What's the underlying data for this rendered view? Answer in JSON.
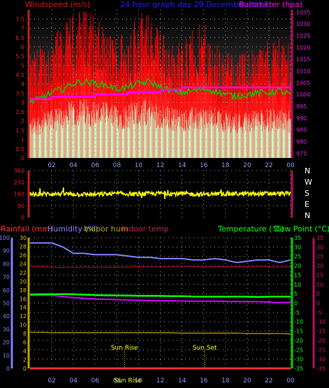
{
  "header": {
    "wind_title": "Windspeed (m/s)",
    "graph_title": "24 hour graph day  29 December 2013",
    "baro_title": "Barometer (hpa)"
  },
  "colors": {
    "wind": "#ff0000",
    "gust_mean": "#00cc00",
    "wind_light": "#ccffcc",
    "baro": "#ff00ff",
    "direction": "#ffff00",
    "rain": "#ff3030",
    "humidity": "#8080ff",
    "indoor_hum": "#b8a400",
    "indoor_temp": "#a00030",
    "temperature": "#00ff00",
    "dewpoint": "#cc00ff",
    "grid": "#9a9a9a",
    "axis_left": "#c02020",
    "axis_right": "#b01060",
    "axis_right2": "#00cc00"
  },
  "time_ticks": [
    "02",
    "04",
    "06",
    "08",
    "10",
    "12",
    "14",
    "16",
    "18",
    "20",
    "22",
    "00"
  ],
  "chart_data": [
    {
      "type": "area",
      "title": "24 hour graph day  29 December 2013",
      "xlabel": "",
      "ylabel": "Windspeed (m/s)",
      "y2label": "Barometer (hpa)",
      "ylim": [
        0,
        8
      ],
      "y_ticks": [
        "0",
        "0.5",
        "1",
        "1.5",
        "2",
        "2.5",
        "3",
        "3.5",
        "4",
        "4.5",
        "5",
        "5.5",
        "6",
        "6.5",
        "7",
        "7.5"
      ],
      "y2lim": [
        973,
        1036
      ],
      "y2_ticks": [
        "975",
        "980",
        "985",
        "990",
        "995",
        "1000",
        "1005",
        "1010",
        "1015",
        "1020",
        "1025",
        "1030",
        "1035"
      ],
      "x": [
        0,
        1,
        2,
        3,
        4,
        5,
        6,
        7,
        8,
        9,
        10,
        11,
        12,
        13,
        14,
        15,
        16,
        17,
        18,
        19,
        20,
        21,
        22,
        23,
        24
      ],
      "series": [
        {
          "name": "Windspeed",
          "values": [
            3.0,
            3.3,
            3.6,
            4.0,
            4.6,
            4.9,
            4.7,
            4.4,
            4.1,
            4.3,
            4.8,
            5.2,
            4.6,
            4.0,
            3.9,
            4.3,
            4.4,
            3.8,
            3.6,
            3.4,
            3.6,
            3.8,
            3.9,
            4.2,
            3.7
          ]
        },
        {
          "name": "Gust",
          "values": [
            4.8,
            5.5,
            5.8,
            6.2,
            6.8,
            7.6,
            6.6,
            6.0,
            5.9,
            6.2,
            7.0,
            6.8,
            6.2,
            5.4,
            5.6,
            6.1,
            6.4,
            5.6,
            5.0,
            4.8,
            5.2,
            5.4,
            5.6,
            6.0,
            5.2
          ]
        },
        {
          "name": "Mean",
          "values": [
            2.3,
            2.5,
            2.8,
            3.0,
            3.3,
            3.4,
            3.3,
            3.2,
            3.0,
            3.1,
            3.3,
            3.4,
            3.1,
            2.9,
            2.8,
            2.9,
            3.0,
            2.9,
            2.7,
            2.6,
            2.7,
            2.8,
            2.8,
            2.9,
            2.7
          ]
        },
        {
          "name": "Barometer",
          "axis": "y2",
          "values": [
            998,
            998,
            999,
            999,
            999,
            999,
            1000,
            1000,
            1000,
            1001,
            1001,
            1001,
            1002,
            1002,
            1003,
            1003,
            1003,
            1003,
            1003,
            1003,
            1003,
            1003,
            1003,
            1003,
            1002
          ]
        }
      ]
    },
    {
      "type": "line",
      "y_ticks": [
        "0",
        "90",
        "180",
        "270",
        "360"
      ],
      "ylim": [
        0,
        360
      ],
      "y_right_labels": [
        "N",
        "W",
        "S",
        "E",
        "N"
      ],
      "series": [
        {
          "name": "Wind direction",
          "x": [
            0,
            2,
            4,
            6,
            8,
            10,
            12,
            14,
            16,
            18,
            20,
            22,
            24
          ],
          "values": [
            178,
            182,
            180,
            176,
            183,
            179,
            185,
            181,
            178,
            182,
            180,
            184,
            183
          ]
        }
      ]
    },
    {
      "type": "line",
      "legend": [
        "Rainfall (mm)",
        "Humidity (%)",
        "Indoor hum",
        "Indoor temp",
        "Temperature (°C)",
        "Dew Point (°C)"
      ],
      "rain_ticks": [
        "0",
        "10",
        "20",
        "30",
        "40",
        "50",
        "60",
        "70",
        "80",
        "90",
        "100"
      ],
      "hum_ticks": [
        "0",
        "2",
        "4",
        "6",
        "8",
        "10",
        "12",
        "14",
        "16",
        "18",
        "20",
        "22",
        "24",
        "26",
        "28",
        "30"
      ],
      "temp_ticks": [
        "-35",
        "-30",
        "-25",
        "-20",
        "-15",
        "-10",
        "-5",
        "0",
        "5",
        "10",
        "15",
        "20",
        "25",
        "30",
        "35"
      ],
      "ylim": [
        -35,
        35
      ],
      "x": [
        0,
        1,
        2,
        3,
        4,
        5,
        6,
        7,
        8,
        9,
        10,
        11,
        12,
        13,
        14,
        15,
        16,
        17,
        18,
        19,
        20,
        21,
        22,
        23,
        24
      ],
      "series": [
        {
          "name": "Humidity (%)",
          "axis": "rain",
          "values": [
            96,
            96,
            96,
            93,
            88,
            88,
            87,
            87,
            87,
            86,
            85,
            85,
            84,
            84,
            84,
            83,
            83,
            84,
            83,
            81,
            82,
            83,
            83,
            81,
            83
          ]
        },
        {
          "name": "Temperature (°C)",
          "axis": "temp",
          "values": [
            4.6,
            4.7,
            4.7,
            4.8,
            4.7,
            4.5,
            4.3,
            4.1,
            4.1,
            4.0,
            3.9,
            3.8,
            3.8,
            3.7,
            3.7,
            3.5,
            3.4,
            3.4,
            3.4,
            3.5,
            3.4,
            3.3,
            3.4,
            3.5,
            3.4
          ]
        },
        {
          "name": "Dew Point (°C)",
          "axis": "temp",
          "values": [
            4.2,
            4.2,
            4.2,
            3.5,
            2.9,
            2.5,
            2.2,
            2.0,
            1.9,
            1.6,
            1.5,
            1.4,
            1.3,
            1.2,
            1.1,
            1.0,
            1.0,
            1.0,
            0.9,
            0.8,
            0.8,
            0.8,
            0.5,
            0.2,
            0.4
          ]
        },
        {
          "name": "Indoor temp",
          "axis": "temp",
          "values": [
            19.8,
            19.5,
            19.3,
            19.0,
            19.2,
            19.2,
            19.3,
            19.1,
            19.3,
            19.2,
            19.6,
            19.3,
            19.4,
            19.4,
            19.7,
            19.6,
            19.5,
            19.6,
            19.4,
            19.5,
            19.6,
            19.7,
            19.5,
            19.2,
            19.5
          ]
        },
        {
          "name": "Indoor hum",
          "axis": "hum",
          "values": [
            8.3,
            8.3,
            8.2,
            8.2,
            8.2,
            8.2,
            8.2,
            8.2,
            8.2,
            8.2,
            8.2,
            8.2,
            8.2,
            8.2,
            8.1,
            8.1,
            8.1,
            8.1,
            8.1,
            8.1,
            8.0,
            8.0,
            8.0,
            8.0,
            7.9
          ]
        },
        {
          "name": "Rainfall (mm)",
          "axis": "rain",
          "values": [
            0,
            0,
            0,
            0,
            0,
            0,
            0,
            0,
            0,
            0,
            0,
            0,
            0,
            0,
            0,
            0,
            0,
            0,
            0,
            0,
            0,
            0,
            0,
            0,
            0
          ]
        }
      ],
      "annotations": [
        {
          "label": "Sun Rise",
          "x": 8.7
        },
        {
          "label": "Sun Set",
          "x": 16.1
        }
      ],
      "x_extra_label": "Sun Rise"
    }
  ]
}
